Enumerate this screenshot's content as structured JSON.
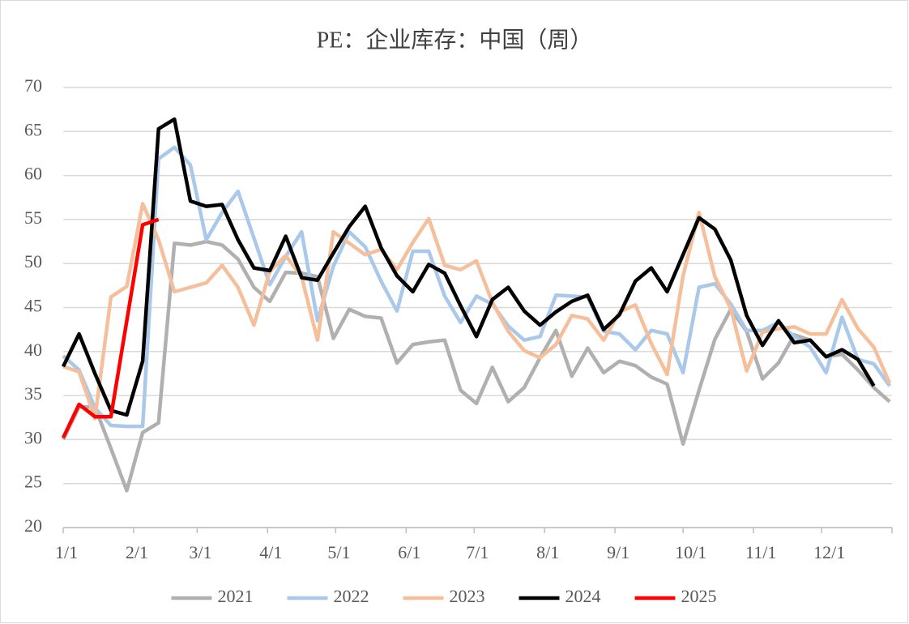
{
  "chart_data": {
    "type": "line",
    "title": "PE：企业库存：中国（周）",
    "x": [
      0,
      7,
      14,
      21,
      28,
      35,
      42,
      49,
      56,
      63,
      70,
      77,
      84,
      91,
      98,
      105,
      112,
      119,
      126,
      133,
      140,
      147,
      154,
      161,
      168,
      175,
      182,
      189,
      196,
      203,
      210,
      217,
      224,
      231,
      238,
      245,
      252,
      259,
      266,
      273,
      280,
      287,
      294,
      301,
      308,
      315,
      322,
      329,
      336,
      343,
      350,
      357,
      364
    ],
    "xlim": [
      0,
      365
    ],
    "xticks": [
      {
        "value": 0,
        "label": "1/1"
      },
      {
        "value": 31,
        "label": "2/1"
      },
      {
        "value": 59,
        "label": "3/1"
      },
      {
        "value": 90,
        "label": "4/1"
      },
      {
        "value": 120,
        "label": "5/1"
      },
      {
        "value": 151,
        "label": "6/1"
      },
      {
        "value": 181,
        "label": "7/1"
      },
      {
        "value": 212,
        "label": "8/1"
      },
      {
        "value": 243,
        "label": "9/1"
      },
      {
        "value": 273,
        "label": "10/1"
      },
      {
        "value": 304,
        "label": "11/1"
      },
      {
        "value": 334,
        "label": "12/1"
      }
    ],
    "ylim": [
      20,
      70
    ],
    "yticks": [
      20,
      25,
      30,
      35,
      40,
      45,
      50,
      55,
      60,
      65,
      70
    ],
    "grid": true,
    "legend": "bottom",
    "series": [
      {
        "name": "2021",
        "color": "#b0b0b0",
        "values": [
          30,
          33.7,
          33.7,
          29,
          24.2,
          30.8,
          31.9,
          52.3,
          52.1,
          52.5,
          52.1,
          50.5,
          47.3,
          45.7,
          49,
          48.9,
          48.5,
          41.5,
          44.8,
          44,
          43.8,
          38.7,
          40.8,
          41.1,
          41.3,
          35.6,
          34.1,
          38.2,
          34.3,
          35.9,
          39.3,
          42.4,
          37.2,
          40.4,
          37.6,
          38.9,
          38.4,
          37.1,
          36.3,
          29.5,
          35.6,
          41.4,
          44.8,
          42.3,
          36.9,
          38.7,
          41.9,
          41.3,
          39.4,
          39.7,
          37.9,
          35.9,
          34.3
        ]
      },
      {
        "name": "2022",
        "color": "#a9c8ea",
        "values": [
          39.5,
          37.9,
          33.6,
          31.6,
          31.5,
          31.5,
          61.9,
          63.2,
          61.2,
          52.7,
          55.8,
          58.2,
          52.9,
          47.6,
          50.8,
          53.6,
          43.5,
          49.7,
          53.6,
          51.9,
          48,
          44.6,
          51.4,
          51.4,
          46.3,
          43.3,
          46.3,
          45.4,
          42.9,
          41.3,
          41.7,
          46.4,
          46.3,
          46.2,
          42.3,
          42,
          40.2,
          42.4,
          42,
          37.6,
          47.3,
          47.7,
          45.4,
          42.4,
          42.4,
          43.3,
          41.7,
          40.5,
          37.6,
          43.9,
          39.1,
          38.6,
          36.1
        ]
      },
      {
        "name": "2023",
        "color": "#f4bf9a",
        "values": [
          38.3,
          37.7,
          32.4,
          46.2,
          47.4,
          56.8,
          52.7,
          46.8,
          47.3,
          47.8,
          49.8,
          47.3,
          43,
          49.1,
          50.9,
          48.5,
          41.3,
          53.6,
          52.3,
          51,
          51.6,
          49.3,
          52.4,
          55.1,
          49.8,
          49.3,
          50.3,
          45.6,
          42.3,
          40.1,
          39.3,
          40.8,
          44.1,
          43.7,
          41.3,
          44.5,
          45.3,
          40.9,
          37.4,
          48.6,
          55.8,
          48.5,
          44.9,
          37.8,
          42.2,
          42.6,
          42.8,
          42,
          42,
          45.9,
          42.6,
          40.5,
          36.4
        ]
      },
      {
        "name": "2024",
        "color": "#000000",
        "values": [
          38.3,
          42,
          37.5,
          33.3,
          32.8,
          38.9,
          65.3,
          66.4,
          57.1,
          56.5,
          56.7,
          52.7,
          49.5,
          49.2,
          53.1,
          48.4,
          48.1,
          51.2,
          54.2,
          56.5,
          51.8,
          48.6,
          46.8,
          49.9,
          48.9,
          45.2,
          41.7,
          45.9,
          47.3,
          44.6,
          43,
          44.5,
          45.7,
          46.4,
          42.5,
          44.2,
          48,
          49.5,
          46.8,
          51,
          55.2,
          53.9,
          50.4,
          44.1,
          40.7,
          43.5,
          41,
          41.3,
          39.4,
          40.2,
          39.1,
          36.1,
          null
        ]
      },
      {
        "name": "2025",
        "color": "#ff0000",
        "values": [
          30.2,
          34,
          32.6,
          32.6,
          43.5,
          54.4,
          55,
          null,
          null,
          null,
          null,
          null,
          null,
          null,
          null,
          null,
          null,
          null,
          null,
          null,
          null,
          null,
          null,
          null,
          null,
          null,
          null,
          null,
          null,
          null,
          null,
          null,
          null,
          null,
          null,
          null,
          null,
          null,
          null,
          null,
          null,
          null,
          null,
          null,
          null,
          null,
          null,
          null,
          null,
          null,
          null,
          null,
          null
        ]
      }
    ]
  }
}
